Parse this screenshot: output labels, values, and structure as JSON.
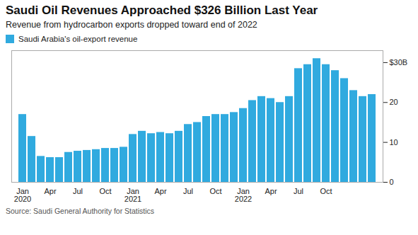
{
  "chart_data": {
    "type": "bar",
    "title": "Saudi Oil Revenues Approached $326 Billion Last Year",
    "subtitle": "Revenue from hydrocarbon exports dropped toward end of 2022",
    "source": "Source: Saudi General Authority for Statistics",
    "categories": [
      "Jan\n2020",
      null,
      null,
      "Apr",
      null,
      null,
      "Jul",
      null,
      null,
      "Oct",
      null,
      null,
      "Jan\n2021",
      null,
      null,
      "Apr",
      null,
      null,
      "Jul",
      null,
      null,
      "Oct",
      null,
      null,
      "Jan\n2022",
      null,
      null,
      "Apr",
      null,
      null,
      "Jul",
      null,
      null,
      "Oct",
      null,
      null,
      null,
      null,
      null
    ],
    "series": [
      {
        "name": "Saudi Arabia's oil-export revenue",
        "color": "#30AADF",
        "values": [
          17.0,
          11.5,
          6.5,
          6.2,
          6.2,
          7.5,
          7.8,
          8.0,
          8.2,
          8.5,
          8.5,
          8.8,
          12.0,
          12.8,
          12.2,
          12.5,
          12.2,
          12.8,
          14.5,
          15.0,
          16.5,
          17.0,
          17.0,
          17.5,
          18.5,
          20.5,
          21.5,
          21.0,
          20.0,
          21.5,
          28.5,
          29.5,
          31.0,
          29.5,
          28.0,
          26.0,
          23.0,
          21.5,
          22.0
        ]
      }
    ],
    "ylim": [
      0,
      33
    ],
    "yticks": [
      0,
      10,
      20,
      {
        "value": 30,
        "label": "$30B"
      }
    ],
    "grid": false,
    "legend": "upper left"
  }
}
